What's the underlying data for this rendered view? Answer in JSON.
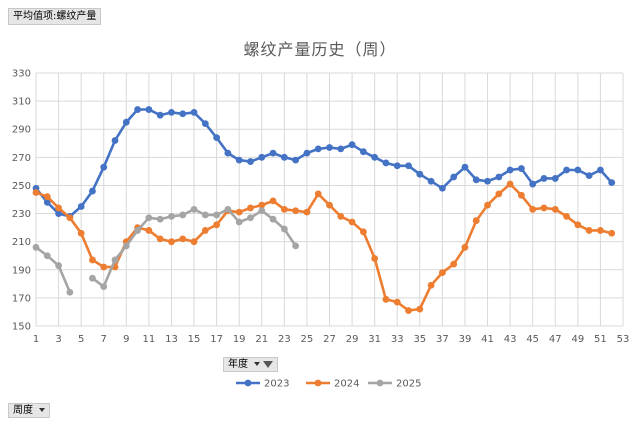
{
  "value_field_button": "平均值项:螺纹产量",
  "year_filter_button": "年度",
  "week_axis_button": "周度",
  "chart_data": {
    "type": "line",
    "title": "螺纹产量历史（周）",
    "xlabel": "",
    "ylabel": "",
    "xlim": [
      1,
      53
    ],
    "ylim": [
      150,
      330
    ],
    "x_ticks": [
      1,
      3,
      5,
      7,
      9,
      11,
      13,
      15,
      17,
      19,
      21,
      23,
      25,
      27,
      29,
      31,
      33,
      35,
      37,
      39,
      41,
      43,
      45,
      47,
      49,
      51,
      53
    ],
    "y_ticks": [
      150,
      170,
      190,
      210,
      230,
      250,
      270,
      290,
      310,
      330
    ],
    "grid": true,
    "legend_position": "bottom",
    "series": [
      {
        "name": "2023",
        "color": "#4472c4",
        "values": [
          248,
          238,
          230,
          228,
          235,
          246,
          263,
          282,
          295,
          304,
          304,
          300,
          302,
          301,
          302,
          294,
          284,
          273,
          268,
          267,
          270,
          273,
          270,
          268,
          273,
          276,
          277,
          276,
          279,
          274,
          270,
          266,
          264,
          264,
          258,
          253,
          248,
          256,
          263,
          254,
          253,
          256,
          261,
          262,
          251,
          255,
          255,
          261,
          261,
          257,
          261,
          252
        ]
      },
      {
        "name": "2024",
        "color": "#ed7d31",
        "values": [
          245,
          242,
          234,
          227,
          216,
          197,
          192,
          192,
          210,
          220,
          218,
          212,
          210,
          212,
          210,
          218,
          222,
          232,
          231,
          234,
          236,
          239,
          233,
          232,
          231,
          244,
          236,
          228,
          224,
          217,
          198,
          169,
          167,
          161,
          162,
          179,
          188,
          194,
          206,
          225,
          236,
          244,
          251,
          243,
          233,
          234,
          233,
          228,
          222,
          218,
          218,
          216
        ]
      },
      {
        "name": "2025",
        "color": "#a5a5a5",
        "values": [
          206,
          200,
          193,
          174,
          null,
          184,
          178,
          197,
          207,
          218,
          227,
          226,
          228,
          229,
          233,
          229,
          229,
          233,
          224,
          227,
          232,
          226,
          219,
          207
        ]
      }
    ]
  }
}
